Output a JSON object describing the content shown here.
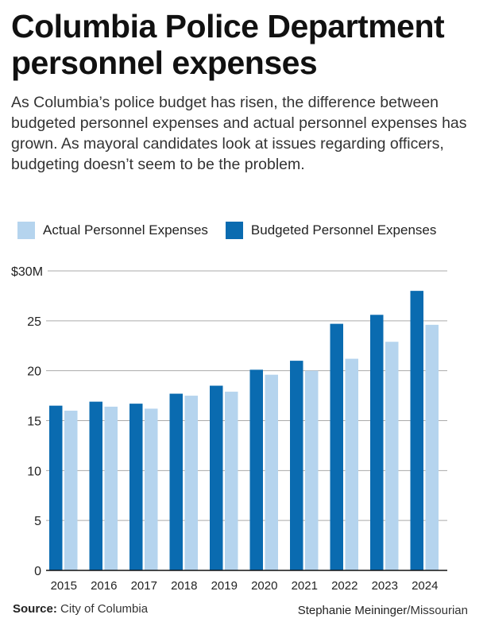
{
  "title": "Columbia Police Department personnel expenses",
  "subtitle": "As Columbia’s police budget has risen, the difference between budgeted personnel expenses and actual personnel expenses has grown. As mayoral candidates look at issues regarding officers, budgeting doesn’t seem to be the problem.",
  "footer": {
    "source_label": "Source:",
    "source": "City of Columbia",
    "credit_name": "Stephanie Meininger",
    "credit_org": "/Missourian"
  },
  "chart_data": {
    "type": "bar",
    "categories": [
      "2015",
      "2016",
      "2017",
      "2018",
      "2019",
      "2020",
      "2021",
      "2022",
      "2023",
      "2024"
    ],
    "series": [
      {
        "name": "Budgeted Personnel Expenses",
        "color": "#0a6bb0",
        "values": [
          16.5,
          16.9,
          16.7,
          17.7,
          18.5,
          20.1,
          21.0,
          24.7,
          25.6,
          28.0
        ]
      },
      {
        "name": "Actual Personnel Expenses",
        "color": "#b5d4ee",
        "values": [
          16.0,
          16.4,
          16.2,
          17.5,
          17.9,
          19.6,
          20.0,
          21.2,
          22.9,
          24.6
        ]
      }
    ],
    "legend_order": [
      "Actual Personnel Expenses",
      "Budgeted Personnel Expenses"
    ],
    "yticks": [
      "0",
      "5",
      "10",
      "15",
      "20",
      "25",
      "$30M"
    ],
    "ylim": [
      0,
      30
    ],
    "unit": "millions of dollars",
    "grid": true,
    "legend_placement": "top"
  }
}
